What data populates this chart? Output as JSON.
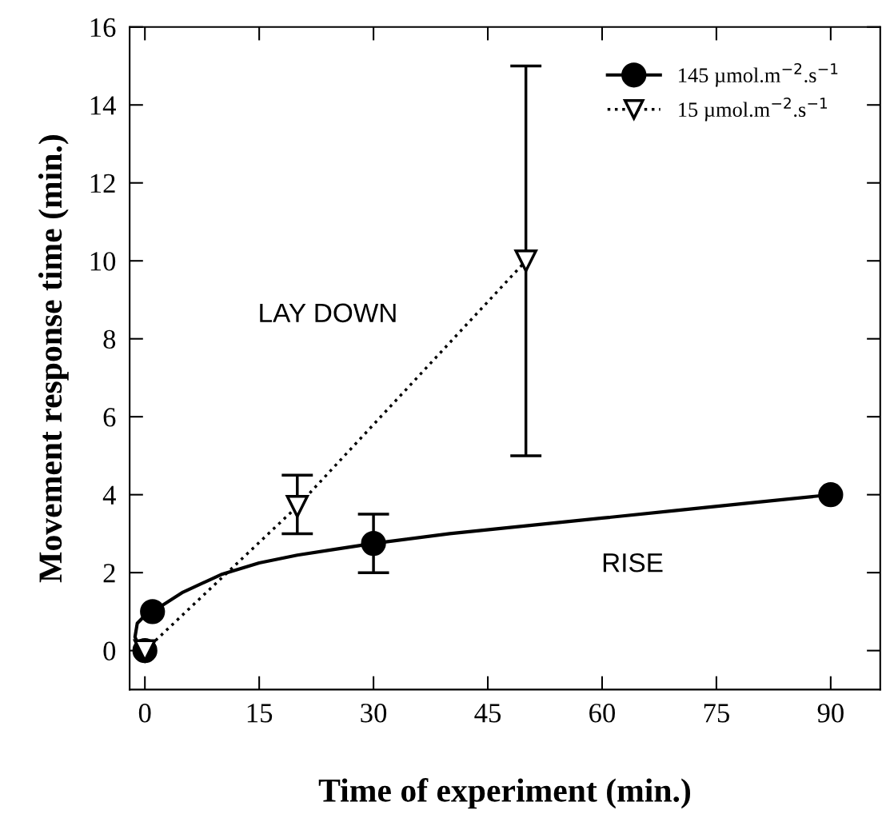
{
  "chart_data": {
    "type": "line",
    "xlabel": "Time of experiment (min.)",
    "ylabel": "Movement response time (min.)",
    "xlim": [
      -2,
      96.5
    ],
    "ylim": [
      -1,
      16
    ],
    "xticks": [
      0,
      15,
      30,
      45,
      60,
      75,
      90
    ],
    "yticks": [
      0,
      2,
      4,
      6,
      8,
      10,
      12,
      14,
      16
    ],
    "legend": "top right",
    "grid": false,
    "annotations": [
      "LAY DOWN",
      "RISE"
    ],
    "series": [
      {
        "type": "line",
        "color": "#000000",
        "x": [
          0,
          -0.8,
          -1.3,
          -1,
          0,
          1,
          5,
          10,
          15,
          20,
          25,
          30,
          40,
          50,
          60,
          70,
          80,
          90
        ],
        "values": [
          0,
          0.1,
          0.35,
          0.7,
          0.9,
          1,
          1.5,
          1.95,
          2.25,
          2.45,
          2.6,
          2.75,
          3.0,
          3.2,
          3.4,
          3.6,
          3.8,
          4.0
        ],
        "marker": "none",
        "line_style": "solid"
      },
      {
        "name": "145 µmol.m$^{−2}$.s$^{−1}$",
        "type": "scatter",
        "color": "#000000",
        "x": [
          0,
          1,
          30,
          90
        ],
        "values": [
          0,
          1,
          2.75,
          4
        ],
        "errors": [
          null,
          null,
          [
            2,
            3.5
          ],
          null
        ],
        "marker": "circle"
      },
      {
        "name": "15 µmol.m$^{−2}$.s$^{−1}$",
        "color": "#000000",
        "x": [
          0,
          20,
          50
        ],
        "values": [
          0,
          3.7,
          10
        ],
        "errors": [
          null,
          [
            3,
            4.5
          ],
          [
            5,
            15
          ]
        ],
        "marker": "triangle",
        "line_style": "dotted"
      }
    ]
  }
}
